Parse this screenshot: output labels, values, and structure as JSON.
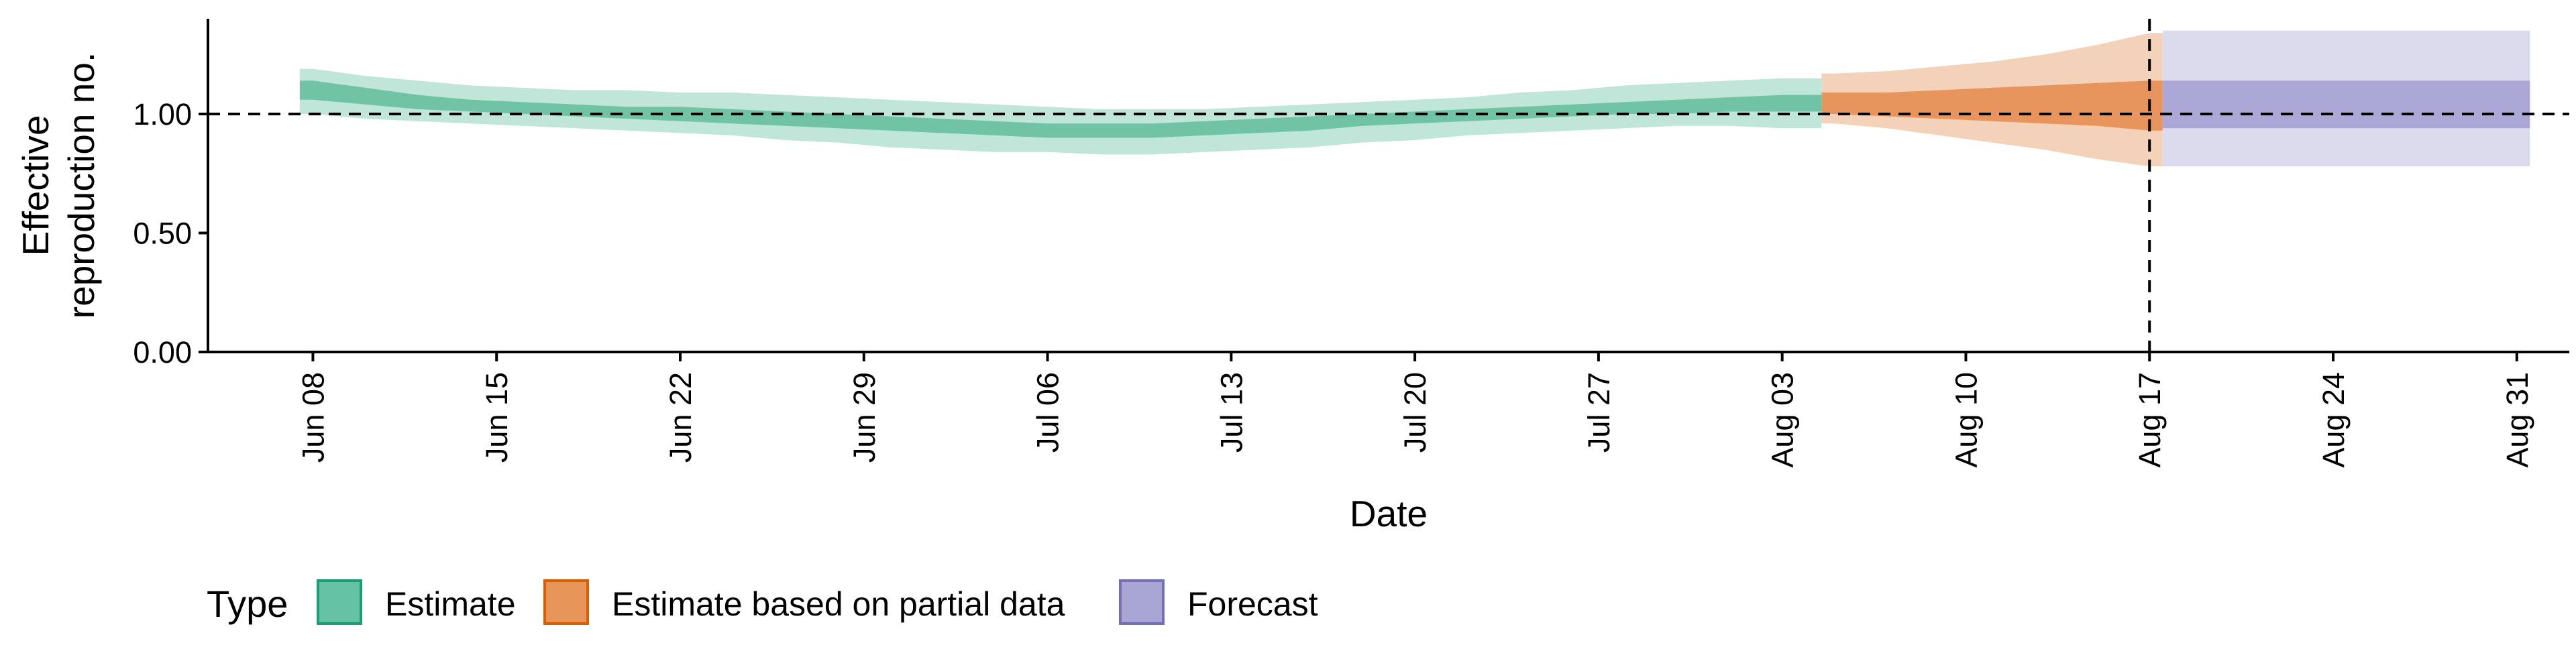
{
  "chart_data": {
    "type": "area",
    "xlabel": "Date",
    "ylabel_lines": [
      "Effective",
      "reproduction no."
    ],
    "ylim": [
      0,
      1.4
    ],
    "yticks": [
      0.0,
      0.5,
      1.0
    ],
    "ytick_labels": [
      "0.00",
      "0.50",
      "1.00"
    ],
    "xlim": [
      "2020-06-04",
      "2020-09-02"
    ],
    "xticks": [
      "2020-06-08",
      "2020-06-15",
      "2020-06-22",
      "2020-06-29",
      "2020-07-06",
      "2020-07-13",
      "2020-07-20",
      "2020-07-27",
      "2020-08-03",
      "2020-08-10",
      "2020-08-17",
      "2020-08-24",
      "2020-08-31"
    ],
    "xtick_labels": [
      "Jun 08",
      "Jun 15",
      "Jun 22",
      "Jun 29",
      "Jul 06",
      "Jul 13",
      "Jul 20",
      "Jul 27",
      "Aug 03",
      "Aug 10",
      "Aug 17",
      "Aug 24",
      "Aug 31"
    ],
    "reference_hline": 1.0,
    "reference_vline": "2020-08-17",
    "legend": {
      "title": "Type",
      "position": "bottom",
      "entries": [
        {
          "label": "Estimate",
          "fill": "#66c2a5",
          "border": "#1b9e77"
        },
        {
          "label": "Estimate based on partial data",
          "fill": "#e8955a",
          "border": "#d95f02"
        },
        {
          "label": "Forecast",
          "fill": "#a9a6d4",
          "border": "#7570b3"
        }
      ]
    },
    "series": [
      {
        "name": "Estimate",
        "color_outer": "#bfe6d8",
        "color_inner": "#71c3a5",
        "dates": [
          "2020-06-08",
          "2020-06-10",
          "2020-06-12",
          "2020-06-14",
          "2020-06-16",
          "2020-06-18",
          "2020-06-20",
          "2020-06-22",
          "2020-06-24",
          "2020-06-26",
          "2020-06-28",
          "2020-06-30",
          "2020-07-02",
          "2020-07-04",
          "2020-07-06",
          "2020-07-08",
          "2020-07-10",
          "2020-07-12",
          "2020-07-14",
          "2020-07-16",
          "2020-07-18",
          "2020-07-20",
          "2020-07-22",
          "2020-07-24",
          "2020-07-26",
          "2020-07-28",
          "2020-07-30",
          "2020-08-01",
          "2020-08-03",
          "2020-08-04"
        ],
        "outer_upper": [
          1.19,
          1.16,
          1.14,
          1.12,
          1.11,
          1.1,
          1.1,
          1.09,
          1.09,
          1.08,
          1.07,
          1.06,
          1.05,
          1.04,
          1.03,
          1.02,
          1.02,
          1.02,
          1.03,
          1.04,
          1.05,
          1.06,
          1.07,
          1.09,
          1.1,
          1.12,
          1.13,
          1.14,
          1.15,
          1.15
        ],
        "outer_lower": [
          1.0,
          0.98,
          0.97,
          0.96,
          0.95,
          0.94,
          0.93,
          0.92,
          0.91,
          0.89,
          0.88,
          0.86,
          0.85,
          0.84,
          0.84,
          0.83,
          0.83,
          0.84,
          0.85,
          0.86,
          0.88,
          0.89,
          0.91,
          0.92,
          0.93,
          0.94,
          0.95,
          0.95,
          0.94,
          0.94
        ],
        "inner_upper": [
          1.14,
          1.11,
          1.08,
          1.06,
          1.05,
          1.04,
          1.03,
          1.03,
          1.02,
          1.01,
          1.0,
          0.99,
          0.98,
          0.97,
          0.96,
          0.96,
          0.96,
          0.97,
          0.98,
          0.99,
          1.0,
          1.01,
          1.02,
          1.03,
          1.04,
          1.05,
          1.06,
          1.07,
          1.08,
          1.08
        ],
        "inner_lower": [
          1.06,
          1.04,
          1.02,
          1.01,
          1.0,
          0.99,
          0.98,
          0.97,
          0.96,
          0.95,
          0.94,
          0.93,
          0.92,
          0.91,
          0.9,
          0.9,
          0.9,
          0.91,
          0.92,
          0.93,
          0.95,
          0.96,
          0.97,
          0.98,
          0.99,
          1.0,
          1.0,
          1.01,
          1.01,
          1.01
        ]
      },
      {
        "name": "Estimate based on partial data",
        "color_outer": "#f4d1b9",
        "color_inner": "#e7955c",
        "dates": [
          "2020-08-05",
          "2020-08-07",
          "2020-08-09",
          "2020-08-11",
          "2020-08-13",
          "2020-08-15",
          "2020-08-17"
        ],
        "outer_upper": [
          1.17,
          1.18,
          1.2,
          1.22,
          1.25,
          1.29,
          1.34
        ],
        "outer_lower": [
          0.96,
          0.94,
          0.91,
          0.88,
          0.85,
          0.81,
          0.78
        ],
        "inner_upper": [
          1.09,
          1.09,
          1.1,
          1.11,
          1.12,
          1.13,
          1.14
        ],
        "inner_lower": [
          1.0,
          0.99,
          0.98,
          0.97,
          0.96,
          0.95,
          0.93
        ]
      },
      {
        "name": "Forecast",
        "color_outer": "#dcdbee",
        "color_inner": "#aba8d6",
        "dates": [
          "2020-08-18",
          "2020-08-31"
        ],
        "outer_upper": [
          1.35,
          1.35
        ],
        "outer_lower": [
          0.78,
          0.78
        ],
        "inner_upper": [
          1.14,
          1.14
        ],
        "inner_lower": [
          0.94,
          0.94
        ]
      }
    ]
  }
}
